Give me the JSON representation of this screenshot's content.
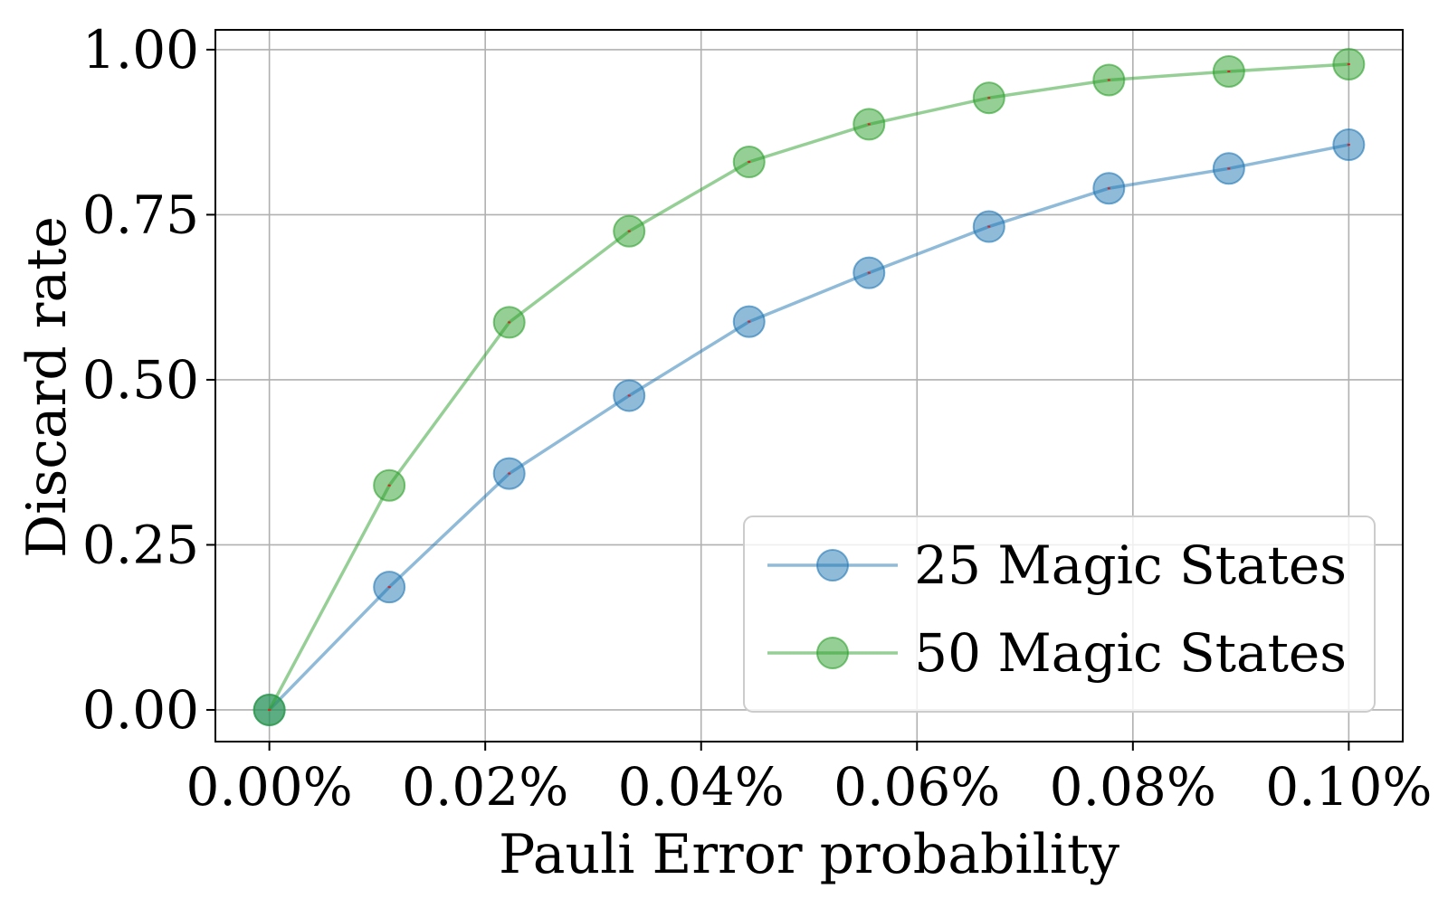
{
  "chart_data": {
    "type": "line",
    "title": "",
    "xlabel": "Pauli Error probability",
    "ylabel": "Discard rate",
    "x": [
      0.0,
      0.011111,
      0.022222,
      0.033333,
      0.044444,
      0.055556,
      0.066667,
      0.077778,
      0.088889,
      0.1
    ],
    "xlim": [
      -0.005,
      0.105
    ],
    "ylim": [
      -0.048,
      1.03
    ],
    "xticks": [
      0.0,
      0.02,
      0.04,
      0.06,
      0.08,
      0.1
    ],
    "xtick_labels": [
      "0.00%",
      "0.02%",
      "0.04%",
      "0.06%",
      "0.08%",
      "0.10%"
    ],
    "yticks": [
      0.0,
      0.25,
      0.5,
      0.75,
      1.0
    ],
    "ytick_labels": [
      "0.00",
      "0.25",
      "0.50",
      "0.75",
      "1.00"
    ],
    "grid": true,
    "legend_position": "bottom-right",
    "series": [
      {
        "name": "25 Magic States",
        "color": "#1f77b4",
        "values": [
          0.0,
          0.186,
          0.358,
          0.476,
          0.588,
          0.662,
          0.732,
          0.79,
          0.82,
          0.856
        ]
      },
      {
        "name": "50 Magic States",
        "color": "#2ca02c",
        "values": [
          0.0,
          0.34,
          0.587,
          0.725,
          0.83,
          0.887,
          0.927,
          0.954,
          0.967,
          0.978
        ]
      }
    ]
  }
}
